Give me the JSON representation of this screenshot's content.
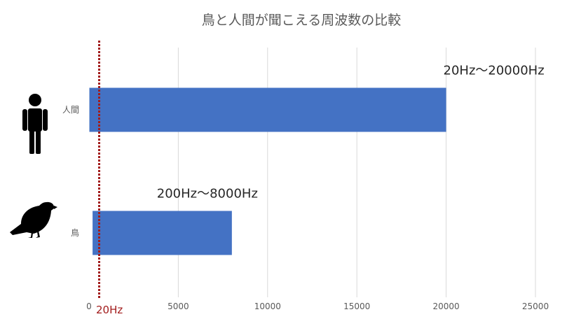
{
  "chart_data": {
    "type": "bar",
    "orientation": "horizontal",
    "title": "鳥と人間が聞こえる周波数の比較",
    "categories": [
      "人間",
      "鳥"
    ],
    "ranges": [
      {
        "category": "人間",
        "start": 20,
        "end": 20000,
        "label": "20Hz～20000Hz",
        "icon": "human-icon"
      },
      {
        "category": "鳥",
        "start": 200,
        "end": 8000,
        "label": "200Hz～8000Hz",
        "icon": "bird-icon"
      }
    ],
    "xlim": [
      0,
      25000
    ],
    "xticks": [
      0,
      5000,
      10000,
      15000,
      20000,
      25000
    ],
    "xtick_labels": [
      "0",
      "5000",
      "10000",
      "15000",
      "20000",
      "25000"
    ],
    "grid": true,
    "legend": "none",
    "reference_line": {
      "value": 20,
      "label": "20Hz",
      "style": "dotted"
    },
    "colors": {
      "bar": "#4472c4",
      "grid": "#d9d9d9",
      "reference": "#a21c1c",
      "text": "#595959"
    }
  }
}
